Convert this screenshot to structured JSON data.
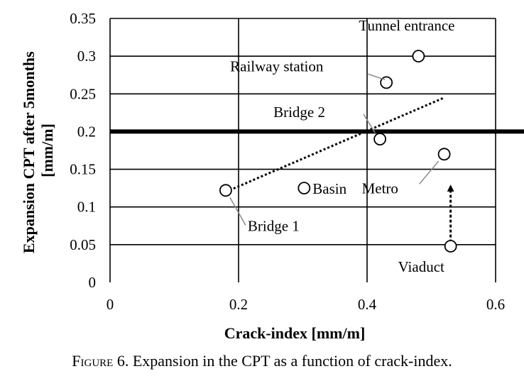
{
  "chart_data": {
    "type": "scatter",
    "xlabel": "Crack-index [mm/m]",
    "ylabel": "Expansion CPT after 5months [mm/m]",
    "xlim": [
      0,
      0.6
    ],
    "ylim": [
      0,
      0.35
    ],
    "xticks": [
      0,
      0.2,
      0.4,
      0.6
    ],
    "xtick_labels": [
      "0",
      "0.2",
      "0.4",
      "0.6"
    ],
    "yticks": [
      0,
      0.05,
      0.1,
      0.15,
      0.2,
      0.25,
      0.3,
      0.35
    ],
    "ytick_labels": [
      "0",
      "0.05",
      "0.1",
      "0.15",
      "0.2",
      "0.25",
      "0.3",
      "0.35"
    ],
    "grid": true,
    "points": [
      {
        "label": "Tunnel entrance",
        "x": 0.48,
        "y": 0.3
      },
      {
        "label": "Railway station",
        "x": 0.43,
        "y": 0.265
      },
      {
        "label": "Bridge 2",
        "x": 0.42,
        "y": 0.19
      },
      {
        "label": "Metro",
        "x": 0.52,
        "y": 0.17
      },
      {
        "label": "Basin",
        "x": 0.302,
        "y": 0.125
      },
      {
        "label": "Bridge 1",
        "x": 0.18,
        "y": 0.122
      },
      {
        "label": "Viaduct",
        "x": 0.53,
        "y": 0.048
      }
    ],
    "threshold_line": {
      "y": 0.2,
      "style": "solid thick"
    },
    "trend_line": {
      "style": "dotted",
      "x": [
        0.18,
        0.52
      ],
      "y": [
        0.12,
        0.245
      ]
    },
    "annotation_arrow": {
      "style": "dotted",
      "from": {
        "x": 0.53,
        "y": 0.053
      },
      "to": {
        "x": 0.53,
        "y": 0.125
      }
    }
  },
  "caption": {
    "prefix": "Figure 6.",
    "text": "Expansion in the CPT as a function of crack-index."
  }
}
